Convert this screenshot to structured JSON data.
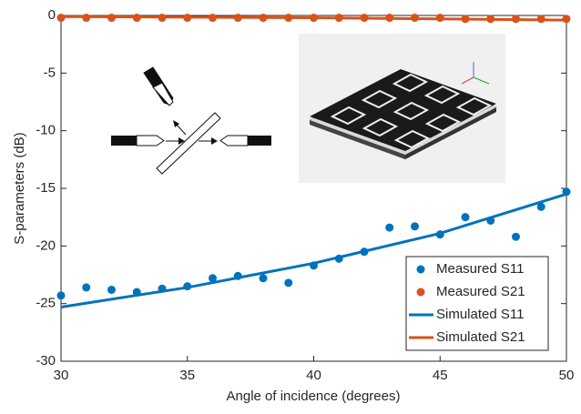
{
  "chart_data": {
    "type": "line",
    "xlabel": "Angle of incidence (degrees)",
    "ylabel": "S-parameters (dB)",
    "xlim": [
      30,
      50
    ],
    "ylim": [
      -30,
      0
    ],
    "xticks": [
      30,
      35,
      40,
      45,
      50
    ],
    "yticks": [
      -30,
      -25,
      -20,
      -15,
      -10,
      -5,
      0
    ],
    "legend": "lower right",
    "series": [
      {
        "name": "Measured S11",
        "color": "#0072bd",
        "style": "marker",
        "x": [
          30,
          31,
          32,
          33,
          34,
          35,
          36,
          37,
          38,
          39,
          40,
          41,
          42,
          43,
          44,
          45,
          46,
          47,
          48,
          49,
          50
        ],
        "values": [
          -24.3,
          -23.6,
          -23.8,
          -24.0,
          -23.7,
          -23.5,
          -22.8,
          -22.6,
          -22.8,
          -23.2,
          -21.7,
          -21.1,
          -20.5,
          -18.4,
          -18.3,
          -19.0,
          -17.5,
          -17.8,
          -19.2,
          -16.6,
          -15.3
        ]
      },
      {
        "name": "Measured S21",
        "color": "#d95319",
        "style": "marker",
        "x": [
          30,
          31,
          32,
          33,
          34,
          35,
          36,
          37,
          38,
          39,
          40,
          41,
          42,
          43,
          44,
          45,
          46,
          47,
          48,
          49,
          50
        ],
        "values": [
          -0.2,
          -0.2,
          -0.2,
          -0.2,
          -0.2,
          -0.2,
          -0.2,
          -0.2,
          -0.2,
          -0.2,
          -0.2,
          -0.2,
          -0.2,
          -0.2,
          -0.2,
          -0.2,
          -0.3,
          -0.3,
          -0.3,
          -0.3,
          -0.3
        ]
      },
      {
        "name": "Simulated S11",
        "color": "#0072bd",
        "style": "line",
        "x": [
          30,
          35,
          40,
          45,
          50
        ],
        "values": [
          -25.3,
          -23.6,
          -21.5,
          -18.9,
          -15.5
        ]
      },
      {
        "name": "Simulated S21",
        "color": "#d95319",
        "style": "line",
        "x": [
          30,
          40,
          50
        ],
        "values": [
          -0.1,
          -0.2,
          -0.4
        ]
      }
    ]
  }
}
